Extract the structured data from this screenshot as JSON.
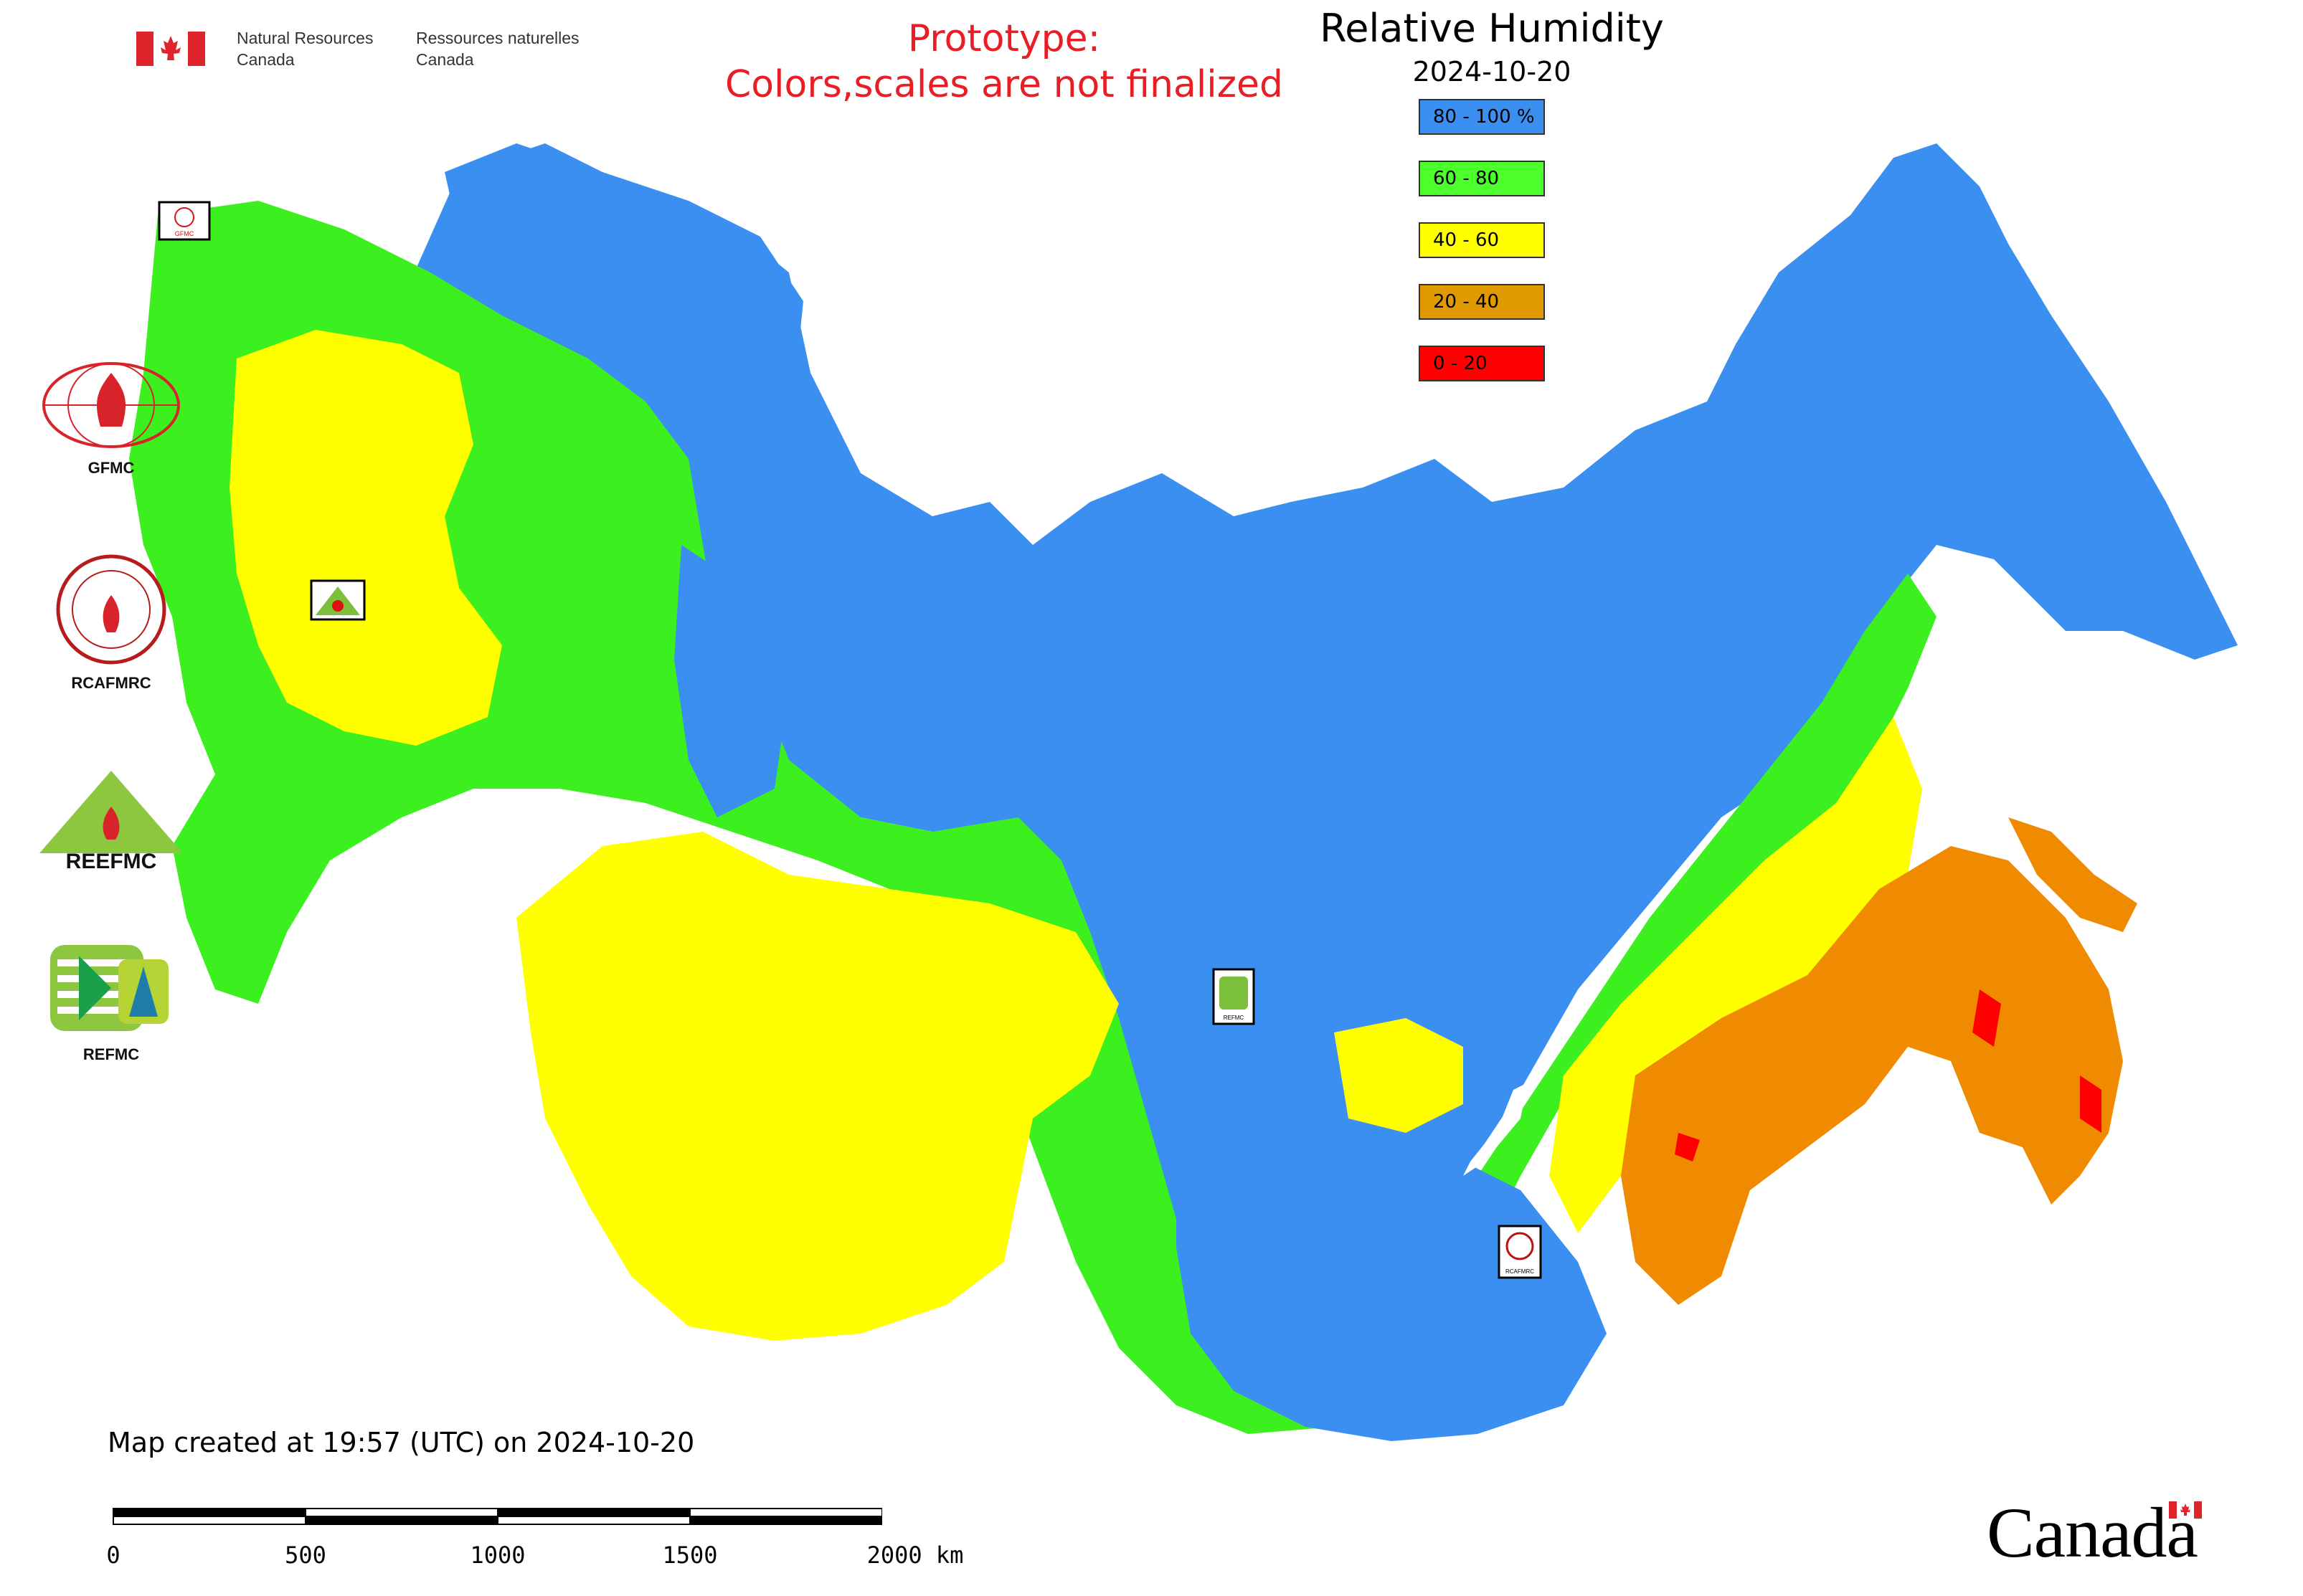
{
  "header": {
    "org_en_line1": "Natural Resources",
    "org_en_line2": "Canada",
    "org_fr_line1": "Ressources naturelles",
    "org_fr_line2": "Canada",
    "prototype_line1": "Prototype:",
    "prototype_line2": "Colors,scales are not finalized"
  },
  "map": {
    "title": "Relative Humidity",
    "date": "2024-10-20",
    "legend": [
      {
        "label": "80 - 100 %",
        "color": "#3b8ff0"
      },
      {
        "label": "60 - 80",
        "color": "#4cff2c"
      },
      {
        "label": "40 - 60",
        "color": "#ffff00"
      },
      {
        "label": "20 - 40",
        "color": "#e09a00"
      },
      {
        "label": "0 - 20",
        "color": "#ff0000"
      }
    ],
    "map_markers": [
      {
        "label": "GFMC"
      },
      {
        "label": "REFMC"
      },
      {
        "label": "REFMC"
      },
      {
        "label": "RCAFMRC"
      }
    ]
  },
  "logos": [
    {
      "caption": "GFMC",
      "icon": "gfmc-logo"
    },
    {
      "caption": "RCAFMRC",
      "icon": "rcafmrc-logo"
    },
    {
      "caption": "",
      "icon": "reefmc-logo",
      "wordmark": "REEFMC"
    },
    {
      "caption": "REFMC",
      "icon": "refmc-logo"
    }
  ],
  "footer": {
    "created": "Map created at 19:57 (UTC) on 2024-10-20",
    "scale_ticks": [
      "0",
      "500",
      "1000",
      "1500",
      "2000 km"
    ],
    "wordmark": "Canada"
  }
}
